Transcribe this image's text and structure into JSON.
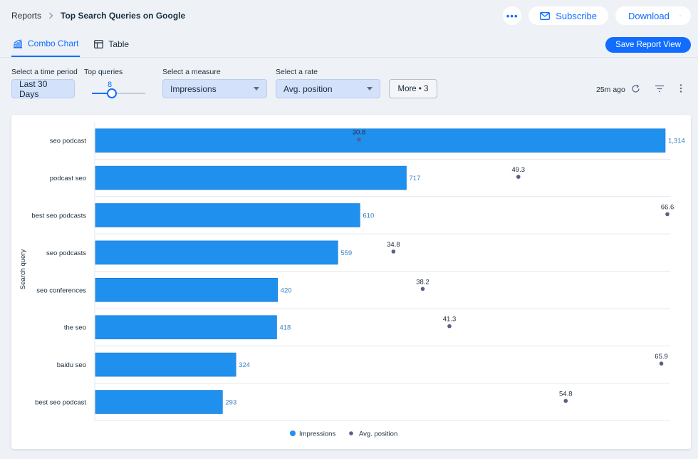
{
  "breadcrumb": {
    "root": "Reports",
    "title": "Top Search Queries on Google"
  },
  "header": {
    "more_icon": "ellipsis-icon",
    "subscribe_label": "Subscribe",
    "download_label": "Download"
  },
  "tabs": [
    {
      "label": "Combo Chart",
      "icon": "chart-icon",
      "active": true
    },
    {
      "label": "Table",
      "icon": "table-icon",
      "active": false
    }
  ],
  "save_view_label": "Save Report View",
  "filters": {
    "time_period_label": "Select a time period",
    "time_period_value": "Last 30 Days",
    "top_queries_label": "Top queries",
    "top_queries_value": "8",
    "measure_label": "Select a measure",
    "measure_value": "Impressions",
    "rate_label": "Select a rate",
    "rate_value": "Avg. position",
    "more_label": "More • 3",
    "updated_text": "25m ago"
  },
  "colors": {
    "accent": "#116dff",
    "bar": "#2090ee",
    "dot": "#5a5f86"
  },
  "chart_data": {
    "type": "bar",
    "orientation": "horizontal",
    "ylabel": "Search query",
    "categories": [
      "seo podcast",
      "podcast seo",
      "best seo podcasts",
      "seo podcasts",
      "seo conferences",
      "the seo",
      "baidu seo",
      "best seo podcast"
    ],
    "series": [
      {
        "name": "Impressions",
        "type": "bar",
        "values": [
          1314,
          717,
          610,
          559,
          420,
          418,
          324,
          293
        ],
        "labels": [
          "1,314",
          "717",
          "610",
          "559",
          "420",
          "418",
          "324",
          "293"
        ]
      },
      {
        "name": "Avg. position",
        "type": "scatter",
        "values": [
          30.8,
          49.3,
          66.6,
          34.8,
          38.2,
          41.3,
          65.9,
          54.8
        ],
        "labels": [
          "30.8",
          "49.3",
          "66.6",
          "34.8",
          "38.2",
          "41.3",
          "65.9",
          "54.8"
        ]
      }
    ],
    "legend": "bottom-center",
    "grid": true
  }
}
